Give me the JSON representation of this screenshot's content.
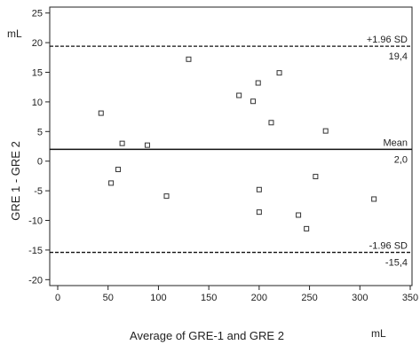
{
  "chart_data": {
    "type": "scatter",
    "title": "",
    "xlabel": "Average of GRE-1 and GRE 2",
    "ylabel": "GRE 1 - GRE 2",
    "x_unit": "mL",
    "y_unit": "mL",
    "xlim": [
      0,
      350
    ],
    "ylim": [
      -21,
      26
    ],
    "x_ticks": [
      0,
      50,
      100,
      150,
      200,
      250,
      300,
      350
    ],
    "y_ticks": [
      -20,
      -15,
      -10,
      -5,
      0,
      5,
      10,
      15,
      20,
      25
    ],
    "x_tick_labels": [
      "0",
      "50",
      "100",
      "150",
      "200",
      "250",
      "300",
      "350"
    ],
    "y_tick_labels": [
      "-20",
      "-15",
      "-10",
      "-5",
      "0",
      "5",
      "10",
      "15",
      "20",
      "25"
    ],
    "grid": false,
    "marker": "open-square",
    "series": [
      {
        "x": [
          43,
          53,
          60,
          64,
          89,
          108,
          130,
          180,
          194,
          199,
          200,
          200,
          212,
          220,
          239,
          247,
          256,
          266,
          314
        ],
        "y": [
          8.1,
          -3.7,
          -1.4,
          3.0,
          2.7,
          -5.9,
          17.2,
          11.1,
          10.1,
          13.2,
          -4.8,
          -8.6,
          6.5,
          14.9,
          -9.1,
          -11.4,
          -2.6,
          5.1,
          -6.4
        ]
      }
    ],
    "reference_lines": [
      {
        "y": 19.4,
        "style": "dashed",
        "label": "+1.96 SD",
        "value_label": "19,4"
      },
      {
        "y": 2.0,
        "style": "solid",
        "label": "Mean",
        "value_label": "2,0"
      },
      {
        "y": -15.4,
        "style": "dashed",
        "label": "-1.96 SD",
        "value_label": "-15,4"
      }
    ],
    "colors": {
      "axis": "#222222",
      "marker_stroke": "#333333",
      "line": "#111111"
    }
  }
}
